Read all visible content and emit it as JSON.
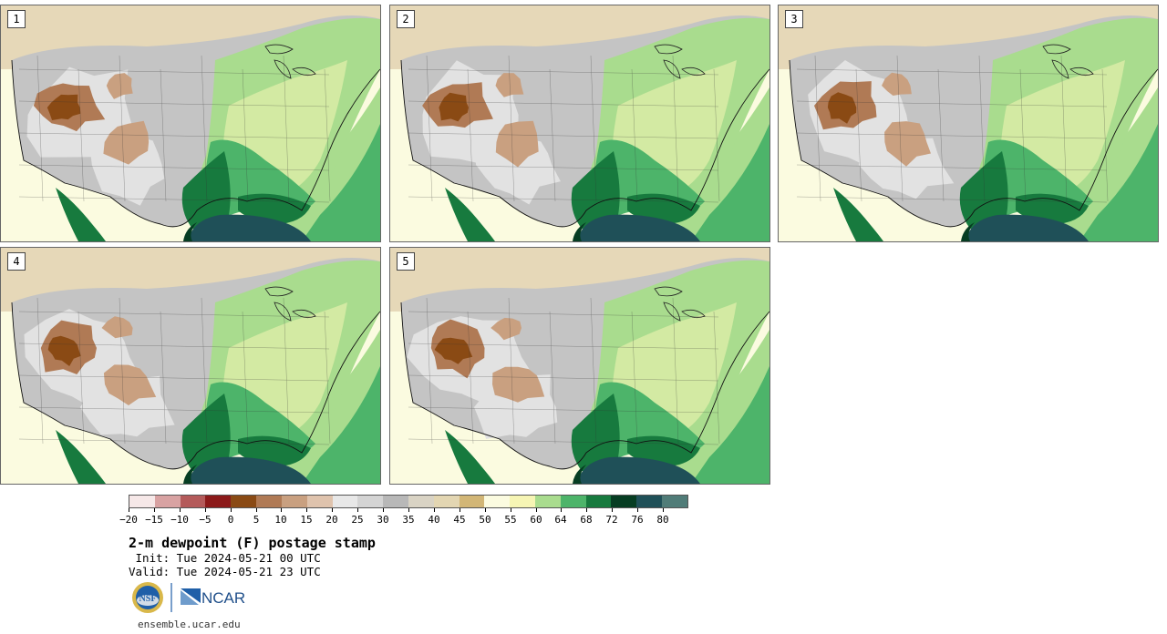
{
  "panels": [
    {
      "label": "1"
    },
    {
      "label": "2"
    },
    {
      "label": "3"
    },
    {
      "label": "4"
    },
    {
      "label": "5"
    }
  ],
  "colorbar": {
    "colors": [
      "#f6e8e8",
      "#d8a2a2",
      "#b45a5a",
      "#8c1a1a",
      "#8a4a14",
      "#b07a55",
      "#c9a080",
      "#dfc3ad",
      "#e8e8e8",
      "#d4d4d4",
      "#b8b8b8",
      "#d9d3c4",
      "#e3d6b2",
      "#d2b676",
      "#fbfbe0",
      "#f6f5b4",
      "#a9dc8e",
      "#4db46a",
      "#177a3e",
      "#063d22",
      "#1f5058",
      "#507c78"
    ],
    "tick_labels": [
      "−20",
      "−15",
      "−10",
      "−5",
      "0",
      "5",
      "10",
      "15",
      "20",
      "25",
      "30",
      "35",
      "40",
      "45",
      "50",
      "55",
      "60",
      "64",
      "68",
      "72",
      "76",
      "80"
    ]
  },
  "title": "2-m dewpoint (F) postage stamp",
  "init_line": " Init: Tue 2024-05-21 00 UTC",
  "valid_line": "Valid: Tue 2024-05-21 23 UTC",
  "logo_text": {
    "nsf": "NSF",
    "ncar": "NCAR"
  },
  "url": "ensemble.ucar.edu"
}
